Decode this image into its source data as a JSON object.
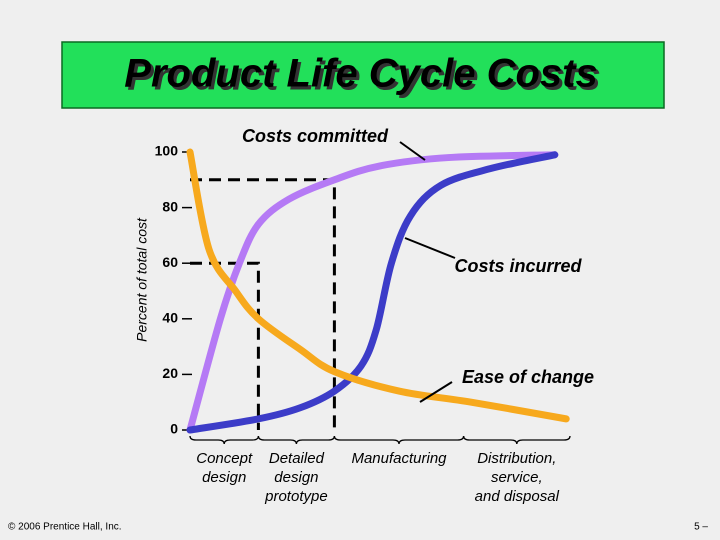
{
  "title": "Product Life Cycle Costs",
  "footer": {
    "copyright": "© 2006 Prentice Hall, Inc.",
    "page": "5 –"
  },
  "chart_data": {
    "type": "line",
    "y_label": "Percent of total cost",
    "xlim": [
      0,
      100
    ],
    "ylim": [
      0,
      100
    ],
    "yticks": [
      0,
      20,
      40,
      60,
      80,
      100
    ],
    "series": [
      {
        "name": "Costs committed",
        "color": "#b57af5",
        "x": [
          0,
          8,
          13,
          18,
          26,
          38,
          50,
          68,
          96
        ],
        "values": [
          0,
          40,
          60,
          74,
          83,
          90,
          95,
          98,
          99
        ]
      },
      {
        "name": "Costs incurred",
        "color": "#3c3cc8",
        "x": [
          0,
          18,
          29,
          38,
          45,
          49,
          53,
          58,
          66,
          79,
          96
        ],
        "values": [
          0,
          4,
          8,
          14,
          23,
          36,
          60,
          77,
          88,
          94,
          99
        ]
      },
      {
        "name": "Ease of change",
        "color": "#f7a91d",
        "x": [
          0,
          5,
          12,
          18,
          29,
          38,
          55,
          74,
          99
        ],
        "values": [
          100,
          65,
          50,
          40,
          29,
          21,
          14,
          10,
          4
        ]
      }
    ],
    "reference_lines": [
      {
        "x": 18,
        "y": 60
      },
      {
        "x": 38,
        "y": 90
      }
    ],
    "phases": [
      {
        "lines": [
          "Concept",
          "design"
        ],
        "start": 0,
        "end": 18
      },
      {
        "lines": [
          "Detailed",
          "design",
          "prototype"
        ],
        "start": 18,
        "end": 38
      },
      {
        "lines": [
          "Manufacturing"
        ],
        "start": 38,
        "end": 72
      },
      {
        "lines": [
          "Distribution,",
          "service,",
          "and disposal"
        ],
        "start": 72,
        "end": 100
      }
    ]
  }
}
